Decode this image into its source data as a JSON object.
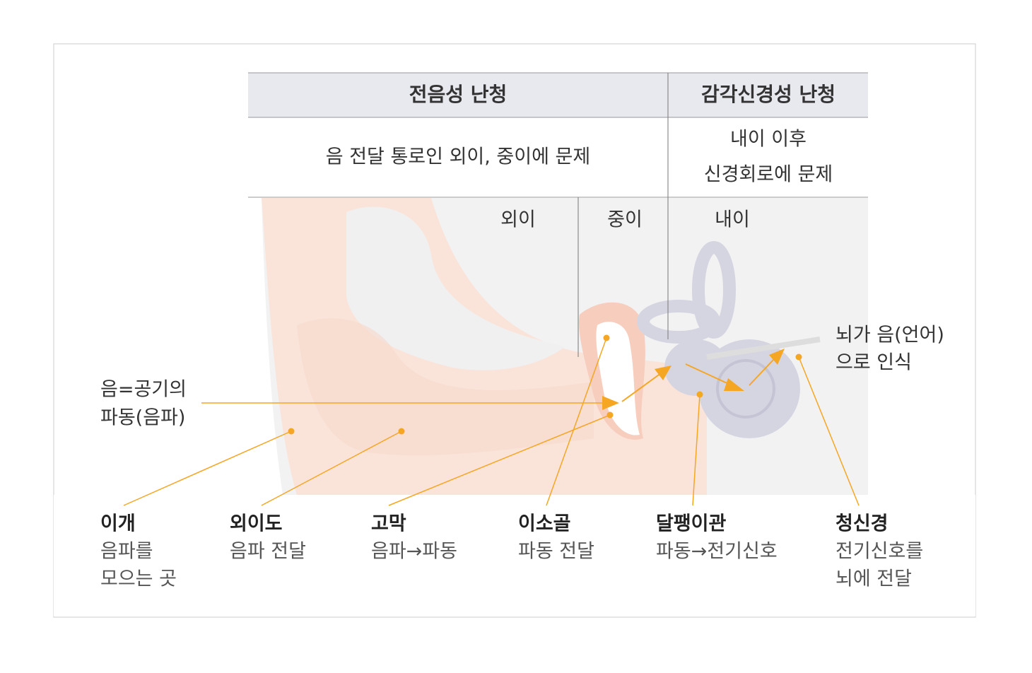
{
  "table": {
    "headers": [
      "전음성 난청",
      "감각신경성 난청"
    ],
    "descriptions": [
      [
        "음 전달 통로인 외이, 중이에 문제"
      ],
      [
        "내이 이후",
        "신경회로에 문제"
      ]
    ]
  },
  "regions": [
    "외이",
    "중이",
    "내이"
  ],
  "sound_label": [
    "음=공기의",
    "파동(음파)"
  ],
  "brain_label": [
    "뇌가 음(언어)",
    "으로 인식"
  ],
  "parts": [
    {
      "name": "이개",
      "desc": [
        "음파를",
        "모으는 곳"
      ]
    },
    {
      "name": "외이도",
      "desc": [
        "음파 전달"
      ]
    },
    {
      "name": "고막",
      "desc": [
        "음파→파동"
      ]
    },
    {
      "name": "이소골",
      "desc": [
        "파동 전달"
      ]
    },
    {
      "name": "달팽이관",
      "desc": [
        "파동→전기신호"
      ]
    },
    {
      "name": "청신경",
      "desc": [
        "전기신호를",
        "뇌에 전달"
      ]
    }
  ]
}
